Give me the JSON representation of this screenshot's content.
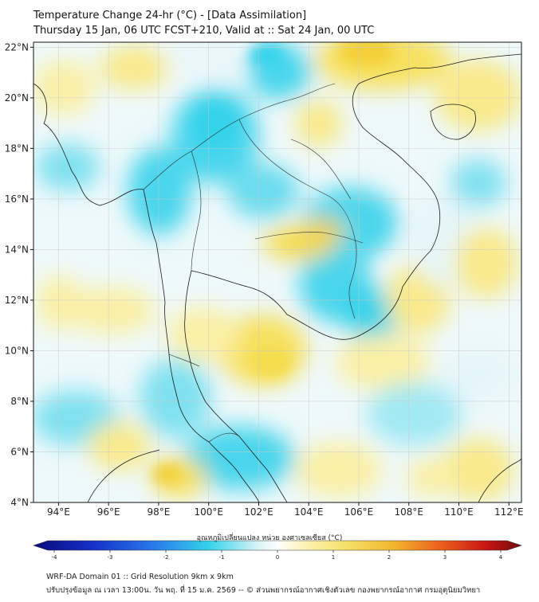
{
  "title_line1": "Temperature Change 24-hr (°C) - [Data Assimilation]",
  "title_line2": "Thursday 15 Jan, 06 UTC FCST+210, Valid at :: Sat 24 Jan, 00 UTC",
  "map": {
    "lon_range": [
      93,
      112.5
    ],
    "lat_range": [
      4,
      22.2
    ],
    "lon_ticks": [
      "94°E",
      "96°E",
      "98°E",
      "100°E",
      "102°E",
      "104°E",
      "106°E",
      "108°E",
      "110°E",
      "112°E"
    ],
    "lon_tick_values": [
      94,
      96,
      98,
      100,
      102,
      104,
      106,
      108,
      110,
      112
    ],
    "lat_ticks": [
      "22°N",
      "20°N",
      "18°N",
      "16°N",
      "14°N",
      "12°N",
      "10°N",
      "8°N",
      "6°N",
      "4°N"
    ],
    "lat_tick_values": [
      22,
      20,
      18,
      16,
      14,
      12,
      10,
      8,
      6,
      4
    ],
    "grid": true,
    "warm_color": "#f5e26a",
    "cool_color": "#35d3ea"
  },
  "colorbar": {
    "title": "อุณหภูมิเปลี่ยนแปลง หน่วย องศาเซลเซียส (°C)",
    "tick_labels": [
      "-4",
      "-3",
      "-2",
      "-1",
      "0",
      "1",
      "2",
      "3",
      "4"
    ],
    "tick_values": [
      -4,
      -3,
      -2,
      -1,
      0,
      1,
      2,
      3,
      4
    ],
    "colors": [
      "#0a0a78",
      "#1530c8",
      "#2a7bea",
      "#35d3ea",
      "#d9f3f6",
      "#ffffff",
      "#fbf2b0",
      "#f5e26a",
      "#f2b52d",
      "#ea5a1c",
      "#c81414",
      "#6e0a0a"
    ]
  },
  "footer_line1": "WRF-DA Domain 01 :: Grid Resolution 9km x 9km",
  "footer_line2": "ปรับปรุงข้อมูล ณ เวลา 13:00น. วัน พฤ. ที่ 15 ม.ค. 2569 -- © ส่วนพยากรณ์อากาศเชิงตัวเลข กองพยากรณ์อากาศ กรมอุตุนิยมวิทยา"
}
